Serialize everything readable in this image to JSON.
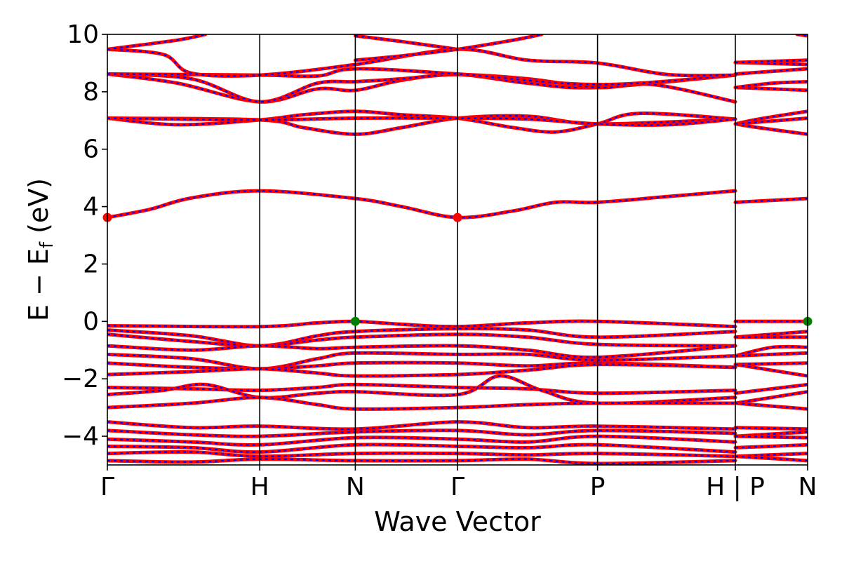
{
  "chart_data": {
    "type": "line",
    "title": "",
    "xlabel": "Wave Vector",
    "ylabel": "E − E_f (eV)",
    "ylabel_parts": {
      "main": "E − E",
      "sub": "f",
      "unit": " (eV)"
    },
    "ylim": [
      -5,
      10
    ],
    "xlim": [
      0,
      1
    ],
    "y_ticks": [
      -4,
      -2,
      0,
      2,
      4,
      6,
      8,
      10
    ],
    "y_tick_labels": [
      "−4",
      "−2",
      "0",
      "2",
      "4",
      "6",
      "8",
      "10"
    ],
    "grid": false,
    "legend": "none",
    "kpoints": [
      {
        "x": 0.0,
        "label": "Γ"
      },
      {
        "x": 0.2176,
        "label": "H"
      },
      {
        "x": 0.3541,
        "label": "N"
      },
      {
        "x": 0.5,
        "label": "Γ"
      },
      {
        "x": 0.7,
        "label": "P"
      },
      {
        "x": 0.8968,
        "label": "H | P",
        "break": true
      },
      {
        "x": 1.0,
        "label": "N"
      }
    ],
    "series_colors": {
      "spin_up": "#ff0000",
      "spin_down": "#0000ff"
    },
    "band_style": "red band with blue dash overlay (spin-degenerate)",
    "cbm_marker": {
      "color": "#ff0000",
      "points": [
        {
          "x": 0.0,
          "y": 3.62
        },
        {
          "x": 0.5,
          "y": 3.62
        }
      ]
    },
    "vbm_marker": {
      "color": "#008000",
      "points": [
        {
          "x": 0.3541,
          "y": 0.0
        },
        {
          "x": 1.0,
          "y": 0.0
        }
      ]
    },
    "bands": [
      [
        [
          0,
          3.62
        ],
        [
          0.06,
          3.9
        ],
        [
          0.12,
          4.3
        ],
        [
          0.2176,
          4.55
        ],
        [
          0.3541,
          4.28
        ],
        [
          0.42,
          4.0
        ],
        [
          0.5,
          3.62
        ],
        [
          0.58,
          3.85
        ],
        [
          0.64,
          4.15
        ],
        [
          0.7,
          4.15
        ],
        [
          0.8,
          4.35
        ],
        [
          0.8968,
          4.55
        ]
      ],
      [
        [
          0.8968,
          4.15
        ],
        [
          1.0,
          4.28
        ]
      ],
      [
        [
          0,
          7.08
        ],
        [
          0.2176,
          7.02
        ],
        [
          0.28,
          6.75
        ],
        [
          0.3541,
          6.52
        ],
        [
          0.42,
          6.75
        ],
        [
          0.5,
          7.08
        ],
        [
          0.6,
          7.15
        ],
        [
          0.7,
          6.88
        ],
        [
          0.8968,
          7.05
        ]
      ],
      [
        [
          0,
          7.08
        ],
        [
          0.1,
          6.85
        ],
        [
          0.2176,
          7.02
        ],
        [
          0.28,
          7.2
        ],
        [
          0.3541,
          7.32
        ],
        [
          0.42,
          7.2
        ],
        [
          0.5,
          7.08
        ],
        [
          0.58,
          6.75
        ],
        [
          0.64,
          6.6
        ],
        [
          0.7,
          6.88
        ],
        [
          0.76,
          7.25
        ],
        [
          0.8968,
          7.05
        ]
      ],
      [
        [
          0,
          7.08
        ],
        [
          0.2176,
          7.02
        ],
        [
          0.3541,
          7.08
        ],
        [
          0.5,
          7.08
        ],
        [
          0.6,
          7.05
        ],
        [
          0.7,
          6.88
        ],
        [
          0.8,
          6.85
        ],
        [
          0.8968,
          7.05
        ]
      ],
      [
        [
          0.8968,
          6.88
        ],
        [
          0.93,
          6.75
        ],
        [
          1.0,
          6.52
        ]
      ],
      [
        [
          0.8968,
          6.88
        ],
        [
          0.93,
          7.05
        ],
        [
          1.0,
          7.32
        ]
      ],
      [
        [
          0.8968,
          6.88
        ],
        [
          1.0,
          7.08
        ]
      ],
      [
        [
          0,
          8.62
        ],
        [
          0.1,
          8.3
        ],
        [
          0.2176,
          7.65
        ],
        [
          0.3,
          8.1
        ],
        [
          0.3541,
          8.05
        ],
        [
          0.42,
          8.4
        ],
        [
          0.5,
          8.6
        ],
        [
          0.6,
          8.3
        ],
        [
          0.7,
          8.15
        ],
        [
          0.8968,
          8.58
        ]
      ],
      [
        [
          0,
          8.62
        ],
        [
          0.12,
          8.45
        ],
        [
          0.2176,
          7.65
        ],
        [
          0.3,
          8.3
        ],
        [
          0.3541,
          8.35
        ],
        [
          0.42,
          8.45
        ],
        [
          0.5,
          8.6
        ],
        [
          0.6,
          8.45
        ],
        [
          0.7,
          8.15
        ],
        [
          0.78,
          8.25
        ],
        [
          0.8968,
          7.65
        ]
      ],
      [
        [
          0,
          8.62
        ],
        [
          0.2176,
          8.58
        ],
        [
          0.3,
          8.55
        ],
        [
          0.3541,
          8.8
        ],
        [
          0.5,
          8.62
        ],
        [
          0.7,
          8.25
        ],
        [
          0.8968,
          8.58
        ]
      ],
      [
        [
          0,
          9.48
        ],
        [
          0.08,
          9.3
        ],
        [
          0.12,
          8.65
        ],
        [
          0.2176,
          8.58
        ],
        [
          0.3541,
          8.95
        ],
        [
          0.5,
          9.48
        ],
        [
          0.6,
          9.1
        ],
        [
          0.7,
          9.0
        ],
        [
          0.8,
          8.6
        ],
        [
          0.8968,
          8.58
        ]
      ],
      [
        [
          0,
          9.48
        ],
        [
          0.1,
          9.8
        ],
        [
          0.14,
          10.0
        ]
      ],
      [
        [
          0.3541,
          9.1
        ],
        [
          0.42,
          9.25
        ],
        [
          0.5,
          9.48
        ],
        [
          0.58,
          9.8
        ],
        [
          0.62,
          10.0
        ]
      ],
      [
        [
          0.3541,
          9.95
        ],
        [
          0.42,
          9.75
        ],
        [
          0.5,
          9.48
        ]
      ],
      [
        [
          0.8968,
          9.02
        ],
        [
          1.0,
          8.95
        ]
      ],
      [
        [
          0.8968,
          8.15
        ],
        [
          1.0,
          8.05
        ]
      ],
      [
        [
          0.8968,
          8.15
        ],
        [
          0.95,
          8.3
        ],
        [
          1.0,
          8.35
        ]
      ],
      [
        [
          0.8968,
          8.62
        ],
        [
          1.0,
          8.8
        ]
      ],
      [
        [
          0.8968,
          9.02
        ],
        [
          1.0,
          9.1
        ]
      ],
      [
        [
          0.985,
          10.0
        ],
        [
          1.0,
          9.95
        ]
      ],
      [
        [
          0,
          -0.15
        ],
        [
          0.2176,
          -0.18
        ],
        [
          0.3,
          -0.05
        ],
        [
          0.3541,
          0.0
        ],
        [
          0.42,
          -0.1
        ],
        [
          0.5,
          -0.18
        ],
        [
          0.6,
          -0.05
        ],
        [
          0.7,
          0.0
        ],
        [
          0.8968,
          -0.18
        ]
      ],
      [
        [
          0,
          -0.3
        ],
        [
          0.12,
          -0.5
        ],
        [
          0.2176,
          -0.85
        ],
        [
          0.3,
          -0.5
        ],
        [
          0.3541,
          -0.35
        ],
        [
          0.5,
          -0.25
        ],
        [
          0.6,
          -0.3
        ],
        [
          0.7,
          -0.55
        ],
        [
          0.8968,
          -0.35
        ]
      ],
      [
        [
          0,
          -0.45
        ],
        [
          0.12,
          -0.7
        ],
        [
          0.2176,
          -0.85
        ],
        [
          0.3,
          -0.65
        ],
        [
          0.3541,
          -0.55
        ],
        [
          0.5,
          -0.45
        ],
        [
          0.6,
          -0.55
        ],
        [
          0.7,
          -0.8
        ],
        [
          0.8968,
          -0.85
        ]
      ],
      [
        [
          0,
          -0.85
        ],
        [
          0.12,
          -1.0
        ],
        [
          0.2176,
          -0.85
        ],
        [
          0.3,
          -0.95
        ],
        [
          0.3541,
          -0.9
        ],
        [
          0.5,
          -0.85
        ],
        [
          0.6,
          -1.0
        ],
        [
          0.7,
          -1.25
        ],
        [
          0.8968,
          -0.85
        ]
      ],
      [
        [
          0,
          -1.15
        ],
        [
          0.12,
          -1.3
        ],
        [
          0.2176,
          -1.65
        ],
        [
          0.3,
          -1.3
        ],
        [
          0.3541,
          -1.1
        ],
        [
          0.5,
          -1.15
        ],
        [
          0.6,
          -1.15
        ],
        [
          0.7,
          -1.35
        ],
        [
          0.8968,
          -1.2
        ]
      ],
      [
        [
          0,
          -1.45
        ],
        [
          0.12,
          -1.6
        ],
        [
          0.2176,
          -1.65
        ],
        [
          0.3,
          -1.55
        ],
        [
          0.3541,
          -1.45
        ],
        [
          0.5,
          -1.45
        ],
        [
          0.6,
          -1.55
        ],
        [
          0.7,
          -1.45
        ],
        [
          0.8968,
          -1.6
        ]
      ],
      [
        [
          0,
          -1.85
        ],
        [
          0.12,
          -1.75
        ],
        [
          0.2176,
          -1.65
        ],
        [
          0.3,
          -1.8
        ],
        [
          0.3541,
          -1.9
        ],
        [
          0.5,
          -1.85
        ],
        [
          0.6,
          -1.7
        ],
        [
          0.7,
          -1.5
        ],
        [
          0.8968,
          -1.6
        ]
      ],
      [
        [
          0,
          -2.3
        ],
        [
          0.12,
          -2.35
        ],
        [
          0.2176,
          -2.4
        ],
        [
          0.3,
          -2.3
        ],
        [
          0.3541,
          -2.2
        ],
        [
          0.5,
          -2.3
        ],
        [
          0.6,
          -2.35
        ],
        [
          0.7,
          -2.5
        ],
        [
          0.8968,
          -2.4
        ]
      ],
      [
        [
          0,
          -2.55
        ],
        [
          0.08,
          -2.4
        ],
        [
          0.14,
          -2.2
        ],
        [
          0.2176,
          -2.65
        ],
        [
          0.3,
          -2.5
        ],
        [
          0.3541,
          -2.45
        ],
        [
          0.5,
          -2.55
        ],
        [
          0.56,
          -1.9
        ],
        [
          0.62,
          -2.4
        ],
        [
          0.7,
          -2.85
        ],
        [
          0.8968,
          -2.65
        ]
      ],
      [
        [
          0,
          -3.0
        ],
        [
          0.12,
          -2.85
        ],
        [
          0.2176,
          -2.65
        ],
        [
          0.3,
          -2.9
        ],
        [
          0.3541,
          -3.05
        ],
        [
          0.5,
          -3.0
        ],
        [
          0.6,
          -2.9
        ],
        [
          0.7,
          -2.85
        ],
        [
          0.8968,
          -2.85
        ]
      ],
      [
        [
          0,
          -3.5
        ],
        [
          0.12,
          -3.7
        ],
        [
          0.2176,
          -3.65
        ],
        [
          0.3541,
          -3.75
        ],
        [
          0.5,
          -3.5
        ],
        [
          0.6,
          -3.7
        ],
        [
          0.7,
          -3.65
        ],
        [
          0.8968,
          -3.75
        ]
      ],
      [
        [
          0,
          -3.8
        ],
        [
          0.12,
          -3.95
        ],
        [
          0.2176,
          -4.0
        ],
        [
          0.3541,
          -3.85
        ],
        [
          0.5,
          -3.8
        ],
        [
          0.6,
          -3.95
        ],
        [
          0.7,
          -3.8
        ],
        [
          0.8968,
          -3.9
        ]
      ],
      [
        [
          0,
          -4.1
        ],
        [
          0.12,
          -4.2
        ],
        [
          0.2176,
          -4.3
        ],
        [
          0.3541,
          -4.05
        ],
        [
          0.5,
          -4.1
        ],
        [
          0.6,
          -4.2
        ],
        [
          0.7,
          -4.0
        ],
        [
          0.8968,
          -4.2
        ]
      ],
      [
        [
          0,
          -4.35
        ],
        [
          0.12,
          -4.4
        ],
        [
          0.2176,
          -4.55
        ],
        [
          0.3541,
          -4.3
        ],
        [
          0.5,
          -4.35
        ],
        [
          0.6,
          -4.4
        ],
        [
          0.7,
          -4.3
        ],
        [
          0.8968,
          -4.55
        ]
      ],
      [
        [
          0,
          -4.6
        ],
        [
          0.12,
          -4.55
        ],
        [
          0.2176,
          -4.7
        ],
        [
          0.3541,
          -4.6
        ],
        [
          0.5,
          -4.6
        ],
        [
          0.6,
          -4.65
        ],
        [
          0.7,
          -4.6
        ],
        [
          0.8968,
          -4.7
        ]
      ],
      [
        [
          0,
          -4.85
        ],
        [
          0.12,
          -4.9
        ],
        [
          0.2176,
          -4.8
        ],
        [
          0.3541,
          -4.85
        ],
        [
          0.5,
          -4.85
        ],
        [
          0.6,
          -4.8
        ],
        [
          0.7,
          -4.95
        ],
        [
          0.8968,
          -4.85
        ]
      ],
      [
        [
          0.8968,
          0.0
        ],
        [
          1.0,
          0.0
        ]
      ],
      [
        [
          0.8968,
          -0.55
        ],
        [
          1.0,
          -0.35
        ]
      ],
      [
        [
          0.8968,
          -0.55
        ],
        [
          1.0,
          -0.55
        ]
      ],
      [
        [
          0.8968,
          -1.2
        ],
        [
          0.95,
          -0.9
        ],
        [
          1.0,
          -0.9
        ]
      ],
      [
        [
          0.8968,
          -1.2
        ],
        [
          1.0,
          -1.1
        ]
      ],
      [
        [
          0.8968,
          -1.5
        ],
        [
          1.0,
          -1.45
        ]
      ],
      [
        [
          0.8968,
          -1.5
        ],
        [
          1.0,
          -1.9
        ]
      ],
      [
        [
          0.8968,
          -2.5
        ],
        [
          1.0,
          -2.2
        ]
      ],
      [
        [
          0.8968,
          -2.85
        ],
        [
          1.0,
          -2.45
        ]
      ],
      [
        [
          0.8968,
          -2.85
        ],
        [
          1.0,
          -3.05
        ]
      ],
      [
        [
          0.8968,
          -3.7
        ],
        [
          1.0,
          -3.75
        ]
      ],
      [
        [
          0.8968,
          -4.0
        ],
        [
          1.0,
          -3.85
        ]
      ],
      [
        [
          0.8968,
          -4.0
        ],
        [
          1.0,
          -4.05
        ]
      ],
      [
        [
          0.8968,
          -4.4
        ],
        [
          1.0,
          -4.3
        ]
      ],
      [
        [
          0.8968,
          -4.7
        ],
        [
          1.0,
          -4.6
        ]
      ],
      [
        [
          0.8968,
          -4.7
        ],
        [
          1.0,
          -4.85
        ]
      ]
    ]
  }
}
